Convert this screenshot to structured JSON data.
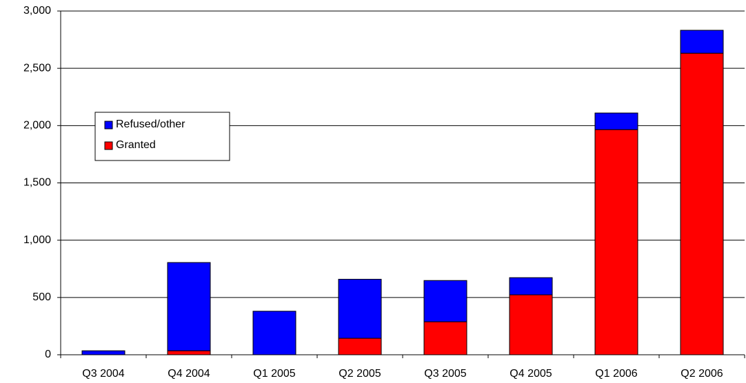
{
  "chart_data": {
    "type": "stacked_bar",
    "categories": [
      "Q3 2004",
      "Q4 2004",
      "Q1 2005",
      "Q2 2005",
      "Q3 2005",
      "Q4 2005",
      "Q1 2006",
      "Q2 2006"
    ],
    "series": [
      {
        "name": "Granted",
        "color": "#ff0000",
        "values": [
          0,
          35,
          0,
          144,
          288,
          523,
          1965,
          2632
        ]
      },
      {
        "name": "Refused/other",
        "color": "#0000ff",
        "values": [
          35,
          770,
          380,
          515,
          360,
          150,
          145,
          200
        ]
      }
    ],
    "ylim": [
      0,
      3000
    ],
    "yticks": [
      0,
      500,
      {
        "value": 1000,
        "label": "1,000"
      },
      {
        "value": 1500,
        "label": "1,500"
      },
      {
        "value": 2000,
        "label": "2,000"
      },
      {
        "value": 2500,
        "label": "2,500"
      },
      {
        "value": 3000,
        "label": "3,000"
      }
    ],
    "grid": true
  }
}
